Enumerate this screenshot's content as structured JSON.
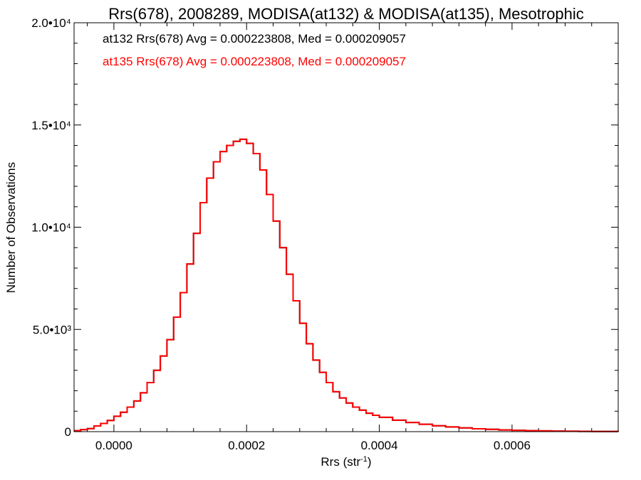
{
  "chart_data": {
    "type": "line",
    "title": "Rrs(678), 2008289, MODISA(at132) & MODISA(at135), Mesotrophic",
    "xlabel": "Rrs (str⁻¹)",
    "ylabel": "Number of Observations",
    "xlim": [
      -6e-05,
      0.00076
    ],
    "ylim": [
      0,
      20000
    ],
    "x_ticks": [
      {
        "value": 0.0,
        "label": "0.0000"
      },
      {
        "value": 0.0002,
        "label": "0.0002"
      },
      {
        "value": 0.0004,
        "label": "0.0004"
      },
      {
        "value": 0.0006,
        "label": "0.0006"
      }
    ],
    "y_ticks": [
      {
        "value": 0,
        "label": "0"
      },
      {
        "value": 5000,
        "label": "5.0•10³"
      },
      {
        "value": 10000,
        "label": "1.0•10⁴"
      },
      {
        "value": 15000,
        "label": "1.5•10⁴"
      },
      {
        "value": 20000,
        "label": "2.0•10⁴"
      }
    ],
    "annotations": [
      {
        "text": "at132 Rrs(678) Avg = 0.000223808, Med = 0.000209057",
        "color": "#000000"
      },
      {
        "text": "at135 Rrs(678) Avg = 0.000223808, Med = 0.000209057",
        "color": "#ff0000"
      }
    ],
    "series": [
      {
        "name": "at132",
        "color": "#000000",
        "x": [
          -6e-05,
          -5e-05,
          -4e-05,
          -3e-05,
          -2e-05,
          -1e-05,
          0.0,
          1e-05,
          2e-05,
          3e-05,
          4e-05,
          5e-05,
          6e-05,
          7e-05,
          8e-05,
          9e-05,
          0.0001,
          0.00011,
          0.00012,
          0.00013,
          0.00014,
          0.00015,
          0.00016,
          0.00017,
          0.00018,
          0.00019,
          0.0002,
          0.00021,
          0.00022,
          0.00023,
          0.00024,
          0.00025,
          0.00026,
          0.00027,
          0.00028,
          0.00029,
          0.0003,
          0.00031,
          0.00032,
          0.00033,
          0.00034,
          0.00035,
          0.00036,
          0.00037,
          0.00038,
          0.00039,
          0.0004,
          0.00042,
          0.00044,
          0.00046,
          0.00048,
          0.0005,
          0.00052,
          0.00054,
          0.00056,
          0.00058,
          0.0006,
          0.00062,
          0.00064,
          0.00066,
          0.00068,
          0.0007,
          0.00072,
          0.00074,
          0.00076
        ],
        "y": [
          50,
          100,
          150,
          280,
          400,
          550,
          750,
          950,
          1200,
          1500,
          1900,
          2400,
          3000,
          3700,
          4500,
          5600,
          6800,
          8200,
          9700,
          11200,
          12400,
          13200,
          13700,
          14000,
          14200,
          14300,
          14100,
          13600,
          12800,
          11600,
          10300,
          9000,
          7700,
          6400,
          5300,
          4300,
          3500,
          2900,
          2400,
          1950,
          1650,
          1400,
          1200,
          1050,
          900,
          800,
          700,
          560,
          450,
          360,
          290,
          230,
          180,
          140,
          110,
          85,
          65,
          50,
          38,
          28,
          20,
          15,
          10,
          6,
          3
        ]
      },
      {
        "name": "at135",
        "color": "#ff0000",
        "x": [
          -6e-05,
          -5e-05,
          -4e-05,
          -3e-05,
          -2e-05,
          -1e-05,
          0.0,
          1e-05,
          2e-05,
          3e-05,
          4e-05,
          5e-05,
          6e-05,
          7e-05,
          8e-05,
          9e-05,
          0.0001,
          0.00011,
          0.00012,
          0.00013,
          0.00014,
          0.00015,
          0.00016,
          0.00017,
          0.00018,
          0.00019,
          0.0002,
          0.00021,
          0.00022,
          0.00023,
          0.00024,
          0.00025,
          0.00026,
          0.00027,
          0.00028,
          0.00029,
          0.0003,
          0.00031,
          0.00032,
          0.00033,
          0.00034,
          0.00035,
          0.00036,
          0.00037,
          0.00038,
          0.00039,
          0.0004,
          0.00042,
          0.00044,
          0.00046,
          0.00048,
          0.0005,
          0.00052,
          0.00054,
          0.00056,
          0.00058,
          0.0006,
          0.00062,
          0.00064,
          0.00066,
          0.00068,
          0.0007,
          0.00072,
          0.00074,
          0.00076
        ],
        "y": [
          50,
          100,
          150,
          280,
          400,
          550,
          750,
          950,
          1200,
          1500,
          1900,
          2400,
          3000,
          3700,
          4500,
          5600,
          6800,
          8200,
          9700,
          11200,
          12400,
          13200,
          13700,
          14000,
          14200,
          14300,
          14100,
          13600,
          12800,
          11600,
          10300,
          9000,
          7700,
          6400,
          5300,
          4300,
          3500,
          2900,
          2400,
          1950,
          1650,
          1400,
          1200,
          1050,
          900,
          800,
          700,
          560,
          450,
          360,
          290,
          230,
          180,
          140,
          110,
          85,
          65,
          50,
          38,
          28,
          20,
          15,
          10,
          6,
          3
        ]
      }
    ]
  }
}
